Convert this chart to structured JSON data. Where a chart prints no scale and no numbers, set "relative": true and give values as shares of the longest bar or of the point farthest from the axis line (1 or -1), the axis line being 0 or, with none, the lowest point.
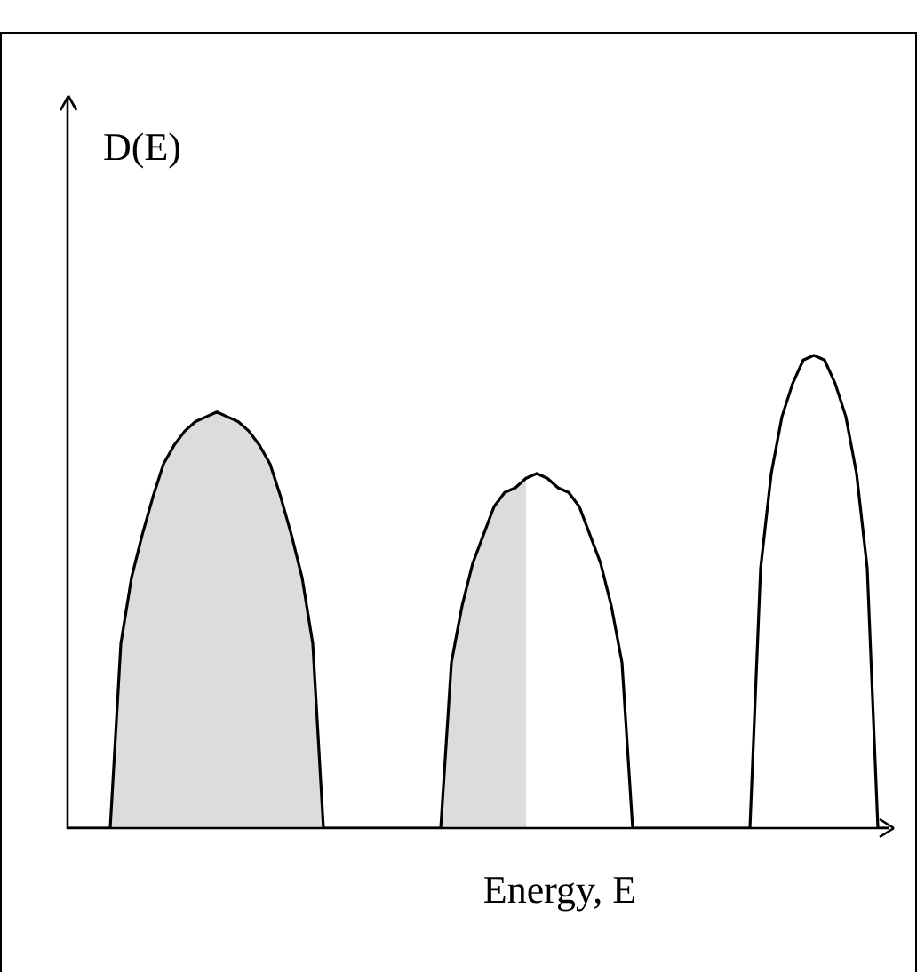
{
  "chart_data": {
    "type": "line",
    "relative": true,
    "xlabel": "Energy, E",
    "ylabel": "D(E)",
    "categories": [
      null,
      null,
      null,
      null,
      null,
      null,
      null,
      null,
      null,
      null,
      null,
      null,
      null,
      null,
      null,
      null,
      null,
      null,
      null,
      null,
      null,
      null,
      null,
      null,
      null,
      null,
      null,
      null,
      null,
      null,
      null,
      null,
      null,
      null,
      null,
      null,
      null,
      null,
      null,
      null,
      null,
      null,
      null,
      null,
      null,
      null,
      null,
      null,
      null,
      null,
      null,
      null,
      null,
      null,
      null,
      null,
      null,
      null,
      null,
      null,
      null,
      null,
      null,
      null,
      null,
      null,
      null,
      null,
      null,
      null,
      null,
      null,
      null,
      null,
      null,
      null,
      null,
      null
    ],
    "series": [
      {
        "type": "area",
        "color": "#dcdcdc",
        "values": [
          0,
          0,
          0,
          0,
          0,
          0.39,
          0.53,
          0.62,
          0.7,
          0.77,
          0.81,
          0.84,
          0.86,
          0.87,
          0.88,
          0.87,
          0.86,
          0.84,
          0.81,
          0.77,
          0.7,
          0.62,
          0.53,
          0.39,
          0,
          0,
          0,
          0,
          0,
          0,
          0,
          0,
          0,
          0,
          0,
          0,
          0.35,
          0.47,
          0.56,
          0.62,
          0.68,
          0.71,
          0.72,
          0.74,
          null,
          null,
          null,
          null,
          null,
          null,
          null,
          null,
          null,
          null,
          null,
          null,
          null,
          null,
          null,
          null,
          null,
          null,
          null,
          null,
          null,
          null,
          null,
          null,
          null,
          null,
          null,
          null,
          null,
          null,
          null,
          null,
          null,
          null
        ]
      },
      {
        "type": "line",
        "color": "#000000",
        "values": [
          0,
          0,
          0,
          0,
          0,
          0.39,
          0.53,
          0.62,
          0.7,
          0.77,
          0.81,
          0.84,
          0.86,
          0.87,
          0.88,
          0.87,
          0.86,
          0.84,
          0.81,
          0.77,
          0.7,
          0.62,
          0.53,
          0.39,
          0,
          0,
          0,
          0,
          0,
          0,
          0,
          0,
          0,
          0,
          0,
          0,
          0.35,
          0.47,
          0.56,
          0.62,
          0.68,
          0.71,
          0.72,
          0.74,
          0.75,
          0.74,
          0.72,
          0.71,
          0.68,
          0.62,
          0.56,
          0.47,
          0.35,
          0,
          0,
          0,
          0,
          0,
          0,
          0,
          0,
          0,
          0,
          0,
          0,
          0.55,
          0.75,
          0.87,
          0.94,
          0.99,
          1,
          0.99,
          0.94,
          0.87,
          0.75,
          0.55,
          0,
          0
        ]
      }
    ]
  }
}
